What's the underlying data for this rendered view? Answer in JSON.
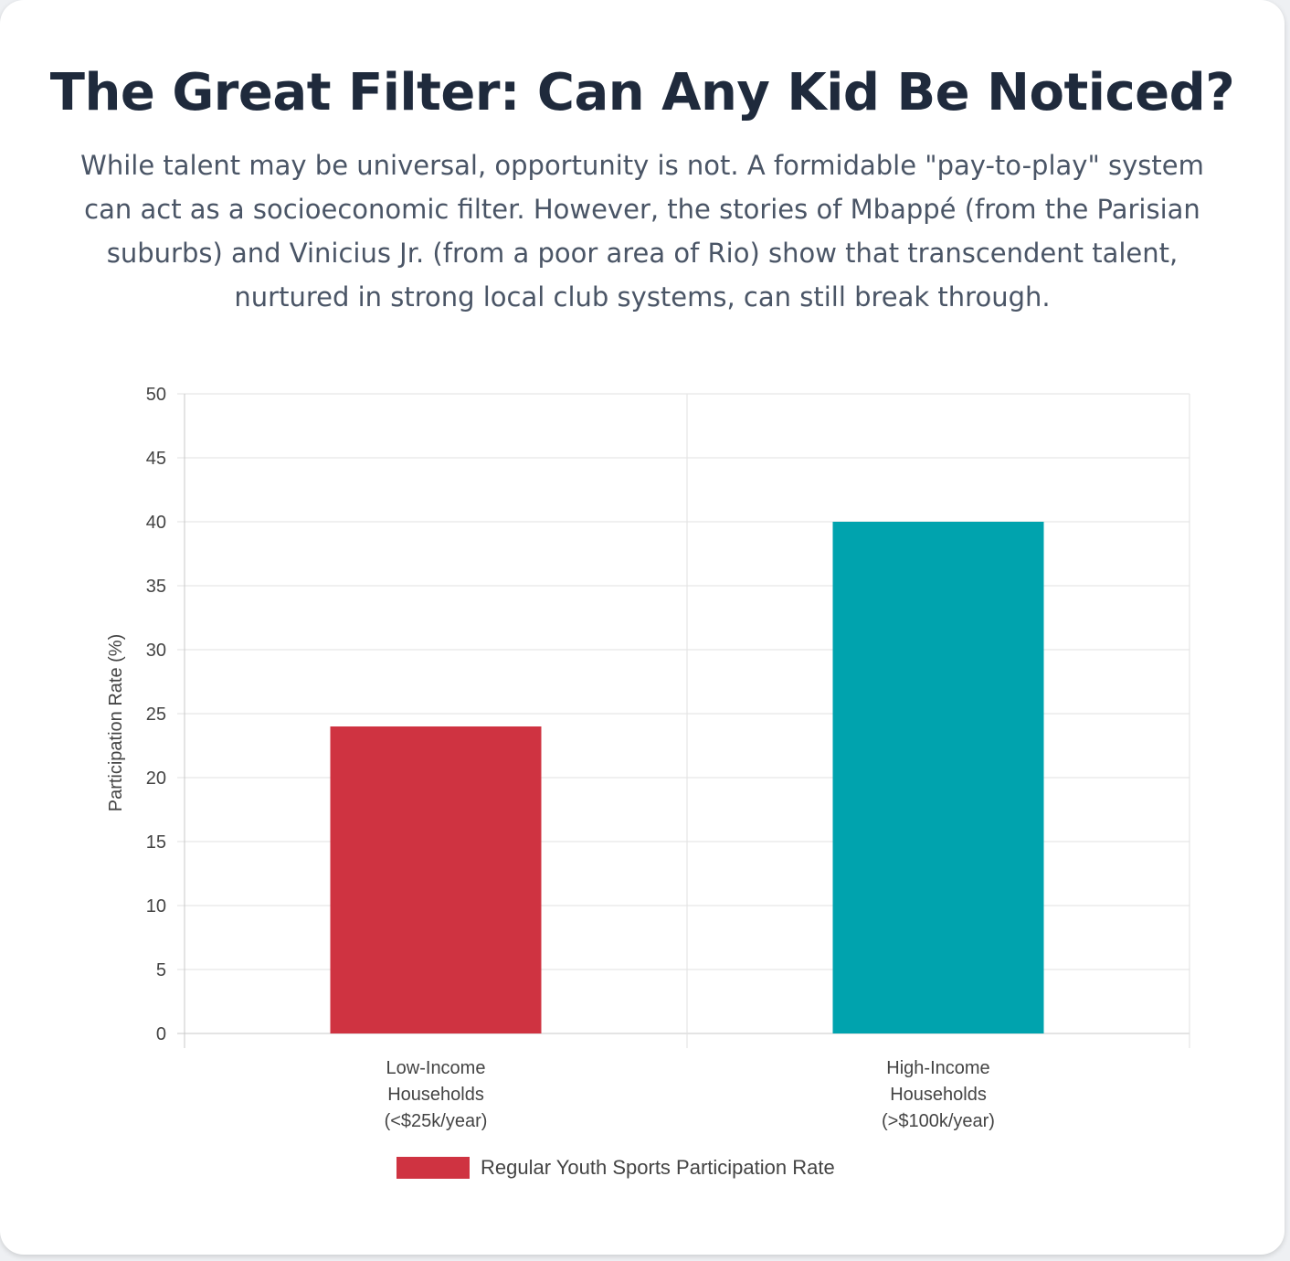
{
  "page": {
    "title": "The Great Filter: Can Any Kid Be Noticed?",
    "subtitle": "While talent may be universal, opportunity is not. A formidable \"pay-to-play\" system can act as a socioeconomic filter. However, the stories of Mbappé (from the Parisian suburbs) and Vinicius Jr. (from a poor area of Rio) show that transcendent talent, nurtured in strong local club systems, can still break through."
  },
  "chart_data": {
    "type": "bar",
    "categories": [
      [
        "Low-Income",
        "Households",
        "(<$25k/year)"
      ],
      [
        "High-Income",
        "Households",
        "(>$100k/year)"
      ]
    ],
    "series": [
      {
        "name": "Regular Youth Sports Participation Rate",
        "values": [
          24,
          40
        ],
        "colors": [
          "#cf3341",
          "#00a3ae"
        ]
      }
    ],
    "xlabel": "",
    "ylabel": "Participation Rate (%)",
    "ylim": [
      0,
      50
    ],
    "yticks": [
      "0",
      "5",
      "10",
      "15",
      "20",
      "25",
      "30",
      "35",
      "40",
      "45",
      "50"
    ],
    "grid": true,
    "legend": "bottom"
  },
  "colors": {
    "title": "#1f2a3c",
    "subtitle": "#4a5566",
    "grid": "#e2e2e2",
    "axis_text": "#444444"
  }
}
